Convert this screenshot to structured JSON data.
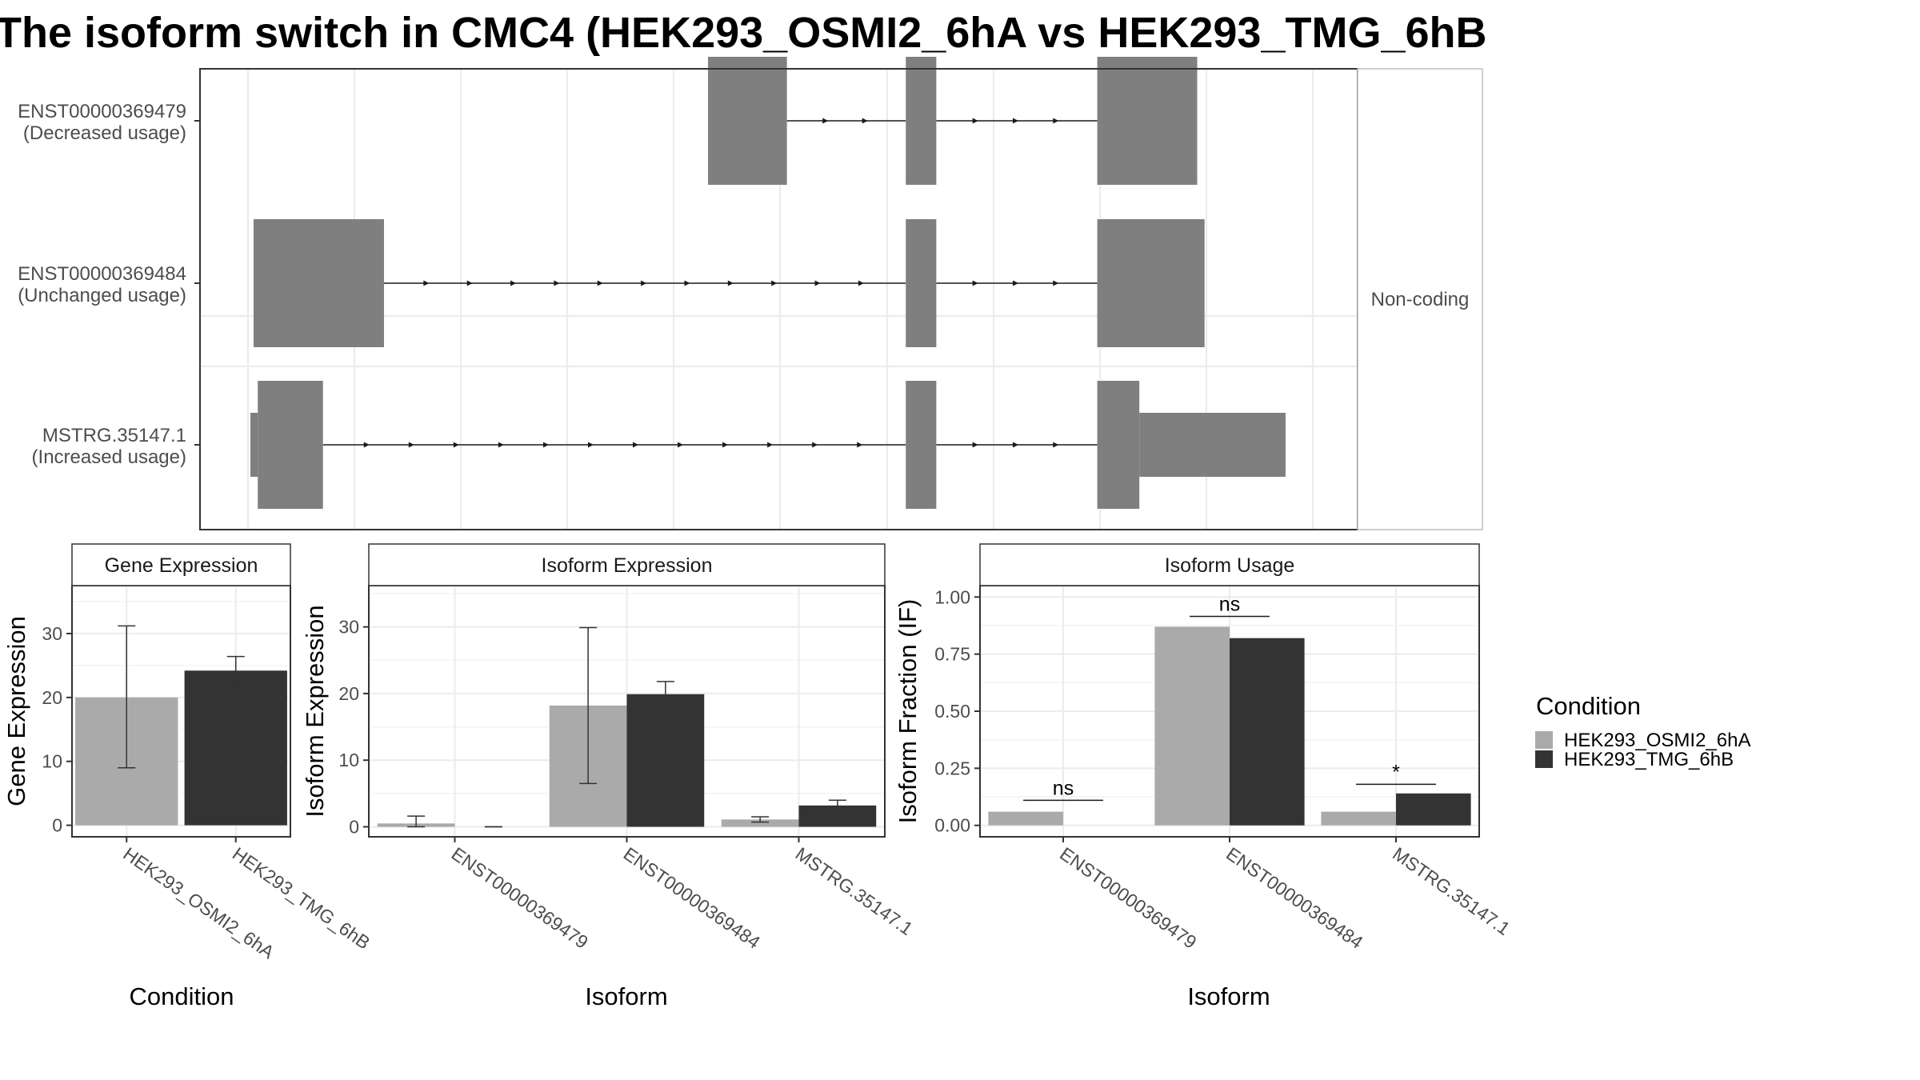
{
  "title": "The isoform switch in CMC4 (HEK293_OSMI2_6hA vs HEK293_TMG_6hB",
  "colors": {
    "condition_a": "#aaaaaa",
    "condition_b": "#333333",
    "exon": "#7f7f7f",
    "grid": "#ebebeb",
    "panel_border": "#333333",
    "strip_fill": "#ffffff"
  },
  "structure_panel": {
    "strip_label": "Non-coding",
    "x_range": [
      0,
      100
    ],
    "transcripts": [
      {
        "id": "ENST00000369479",
        "usage": "(Decreased usage)",
        "tall_blocks": [
          [
            43.5,
            51.0
          ],
          [
            62.3,
            65.2
          ],
          [
            80.5,
            90.0
          ]
        ],
        "short_blocks": []
      },
      {
        "id": "ENST00000369484",
        "usage": "(Unchanged usage)",
        "tall_blocks": [
          [
            0.3,
            12.7
          ],
          [
            62.3,
            65.2
          ],
          [
            80.5,
            90.7
          ]
        ],
        "short_blocks": []
      },
      {
        "id": "MSTRG.35147.1",
        "usage": "(Increased usage)",
        "tall_blocks": [
          [
            0.7,
            6.9
          ],
          [
            62.3,
            65.2
          ],
          [
            80.5,
            84.5
          ]
        ],
        "short_blocks": [
          [
            0.0,
            0.7
          ],
          [
            84.5,
            98.4
          ]
        ]
      }
    ]
  },
  "legend": {
    "title": "Condition",
    "items": [
      "HEK293_OSMI2_6hA",
      "HEK293_TMG_6hB"
    ]
  },
  "chart_data": [
    {
      "type": "bar",
      "title": "Gene Expression",
      "xlabel": "Condition",
      "ylabel": "Gene Expression",
      "ylim": [
        -1.8,
        37.5
      ],
      "yticks": [
        0,
        10,
        20,
        30
      ],
      "categories": [
        "HEK293_OSMI2_6hA",
        "HEK293_TMG_6hB"
      ],
      "series": [
        {
          "name": "HEK293_OSMI2_6hA",
          "values": [
            20.0,
            null
          ],
          "error_low": [
            9.0,
            null
          ],
          "error_high": [
            31.2,
            null
          ]
        },
        {
          "name": "HEK293_TMG_6hB",
          "values": [
            null,
            24.2
          ],
          "error_low": [
            null,
            22.1
          ],
          "error_high": [
            null,
            26.4
          ]
        }
      ]
    },
    {
      "type": "bar",
      "title": "Isoform Expression",
      "xlabel": "Isoform",
      "ylabel": "Isoform Expression",
      "ylim": [
        -1.5,
        36.2
      ],
      "yticks": [
        0,
        10,
        20,
        30
      ],
      "categories": [
        "ENST00000369479",
        "ENST00000369484",
        "MSTRG.35147.1"
      ],
      "series": [
        {
          "name": "HEK293_OSMI2_6hA",
          "values": [
            0.5,
            18.2,
            1.1
          ],
          "error_low": [
            0.0,
            6.5,
            0.7
          ],
          "error_high": [
            1.6,
            29.9,
            1.5
          ]
        },
        {
          "name": "HEK293_TMG_6hB",
          "values": [
            0.0,
            19.9,
            3.2
          ],
          "error_low": [
            0.0,
            18.2,
            2.4
          ],
          "error_high": [
            0.0,
            21.8,
            4.0
          ]
        }
      ]
    },
    {
      "type": "bar",
      "title": "Isoform Usage",
      "xlabel": "Isoform",
      "ylabel": "Isoform Fraction (IF)",
      "ylim": [
        -0.05,
        1.05
      ],
      "yticks": [
        0,
        0.25,
        0.5,
        0.75,
        1.0
      ],
      "ytick_labels": [
        "0.00",
        "0.25",
        "0.50",
        "0.75",
        "1.00"
      ],
      "categories": [
        "ENST00000369479",
        "ENST00000369484",
        "MSTRG.35147.1"
      ],
      "series": [
        {
          "name": "HEK293_OSMI2_6hA",
          "values": [
            0.06,
            0.87,
            0.06
          ]
        },
        {
          "name": "HEK293_TMG_6hB",
          "values": [
            0.0,
            0.82,
            0.14
          ]
        }
      ],
      "annotations": [
        {
          "category": "ENST00000369479",
          "label": "ns",
          "y": 0.11
        },
        {
          "category": "ENST00000369484",
          "label": "ns",
          "y": 0.915
        },
        {
          "category": "MSTRG.35147.1",
          "label": "*",
          "y": 0.18
        }
      ]
    }
  ]
}
